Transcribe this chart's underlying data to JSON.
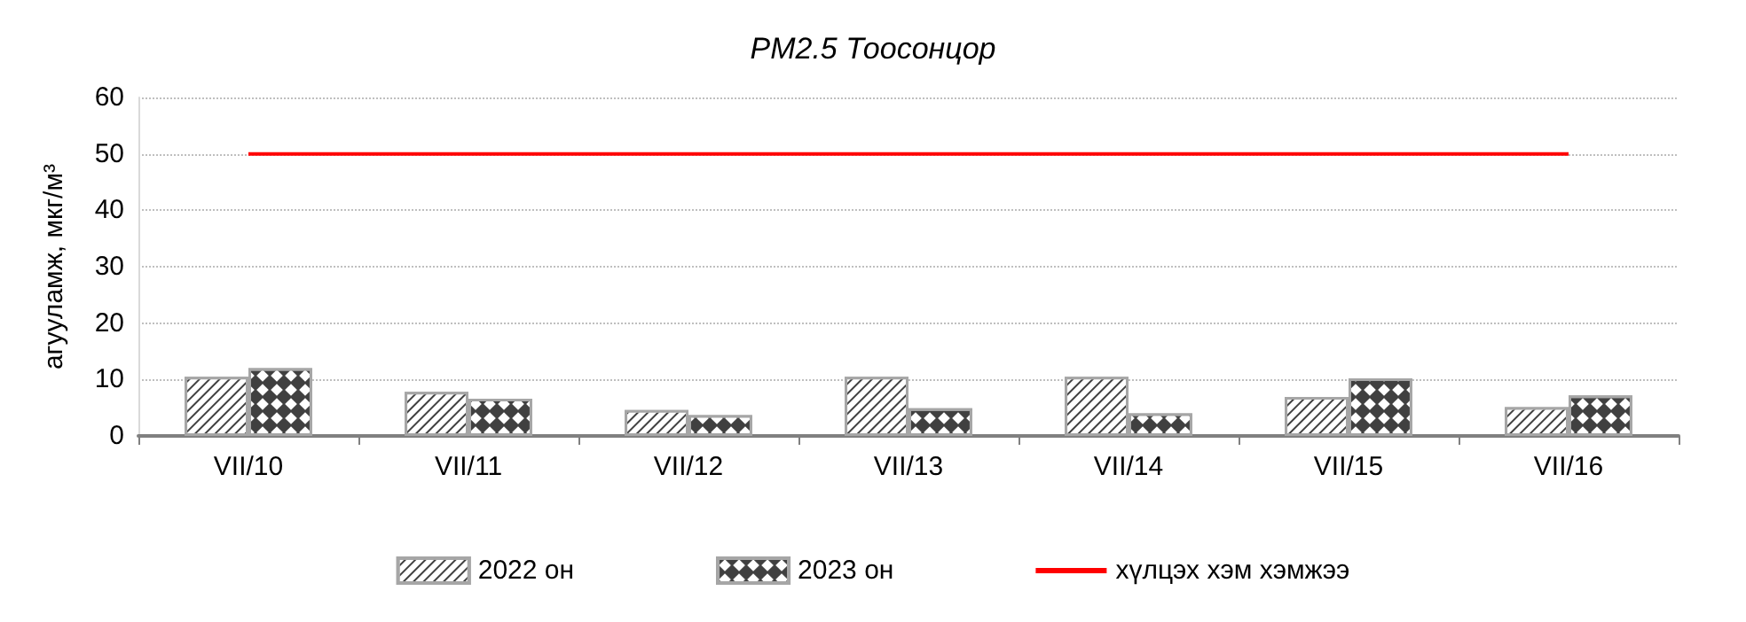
{
  "chart_data": {
    "type": "bar",
    "title": "PM2.5 Тоосонцор",
    "ylabel": "агууламж, мкг/м³",
    "categories": [
      "VII/10",
      "VII/11",
      "VII/12",
      "VII/13",
      "VII/14",
      "VII/15",
      "VII/16"
    ],
    "series": [
      {
        "name": "2022 он",
        "color": "#404040",
        "values": [
          10.5,
          7.8,
          4.6,
          10.5,
          10.5,
          6.9,
          5.1
        ]
      },
      {
        "name": "2023 он",
        "color": "#404040",
        "values": [
          12.0,
          6.6,
          3.7,
          4.9,
          4.0,
          10.2,
          7.2
        ]
      }
    ],
    "ref_lines": [
      {
        "axis": "y",
        "value": 50,
        "label": "хүлцэх хэм хэмжээ",
        "color": "#ff0000",
        "line_style": "solid"
      }
    ],
    "ylim": [
      0,
      60
    ],
    "yticks": [
      0,
      10,
      20,
      30,
      40,
      50,
      60
    ],
    "grid": "y",
    "legend": "bottom"
  }
}
